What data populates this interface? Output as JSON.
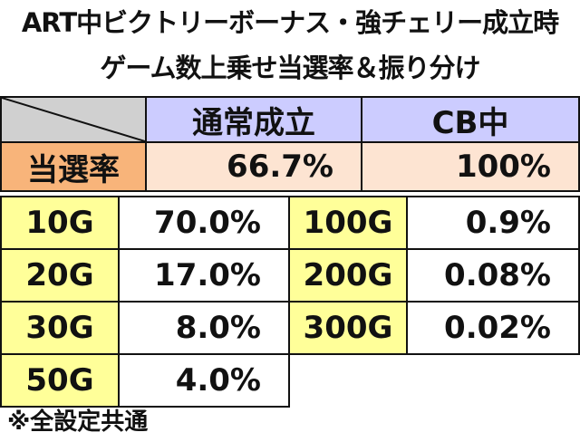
{
  "title": [
    "ART中ビクトリーボーナス・強チェリー成立時",
    "ゲーム数上乗せ当選率＆振り分け"
  ],
  "header_table": {
    "columns": [
      "通常成立",
      "CB中"
    ],
    "rows": [
      {
        "label": "当選率",
        "cells": [
          "66.7%",
          "100%"
        ]
      }
    ]
  },
  "table": {
    "rows": [
      [
        "10G",
        "70.0%",
        "100G",
        "0.9%"
      ],
      [
        "20G",
        "17.0%",
        "200G",
        "0.08%"
      ],
      [
        "30G",
        "8.0%",
        "300G",
        "0.02%"
      ],
      [
        "50G",
        "4.0%"
      ]
    ]
  },
  "footnote": "※全設定共通"
}
